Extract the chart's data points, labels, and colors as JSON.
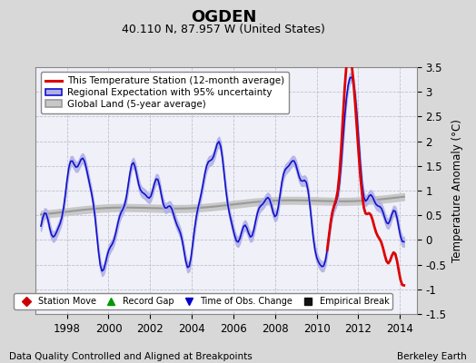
{
  "title": "OGDEN",
  "subtitle": "40.110 N, 87.957 W (United States)",
  "ylabel": "Temperature Anomaly (°C)",
  "footer_left": "Data Quality Controlled and Aligned at Breakpoints",
  "footer_right": "Berkeley Earth",
  "xlim": [
    1996.5,
    2014.8
  ],
  "ylim": [
    -1.5,
    3.5
  ],
  "yticks": [
    -1.5,
    -1.0,
    -0.5,
    0.0,
    0.5,
    1.0,
    1.5,
    2.0,
    2.5,
    3.0,
    3.5
  ],
  "xticks": [
    1998,
    2000,
    2002,
    2004,
    2006,
    2008,
    2010,
    2012,
    2014
  ],
  "bg_color": "#d8d8d8",
  "plot_bg_color": "#f0f0f8",
  "grid_color": "#c0c0d0",
  "station_line_color": "#dd0000",
  "regional_line_color": "#1111cc",
  "regional_fill_color": "#b0b0e8",
  "global_line_color": "#999999",
  "global_fill_color": "#c8c8c8",
  "title_fontsize": 13,
  "subtitle_fontsize": 9,
  "legend_fontsize": 7.5,
  "tick_fontsize": 8.5,
  "ylabel_fontsize": 8.5,
  "footer_fontsize": 7.5,
  "legend_items": [
    {
      "label": "This Temperature Station (12-month average)",
      "color": "#dd0000",
      "lw": 2.2
    },
    {
      "label": "Regional Expectation with 95% uncertainty",
      "color": "#1111cc",
      "fill": "#b0b0e8",
      "lw": 1.3
    },
    {
      "label": "Global Land (5-year average)",
      "color": "#999999",
      "fill": "#c8c8c8",
      "lw": 1.5
    }
  ],
  "bottom_legend": [
    {
      "label": "Station Move",
      "color": "#cc0000",
      "marker": "D"
    },
    {
      "label": "Record Gap",
      "color": "#009900",
      "marker": "^"
    },
    {
      "label": "Time of Obs. Change",
      "color": "#0000cc",
      "marker": "v"
    },
    {
      "label": "Empirical Break",
      "color": "#111111",
      "marker": "s"
    }
  ]
}
